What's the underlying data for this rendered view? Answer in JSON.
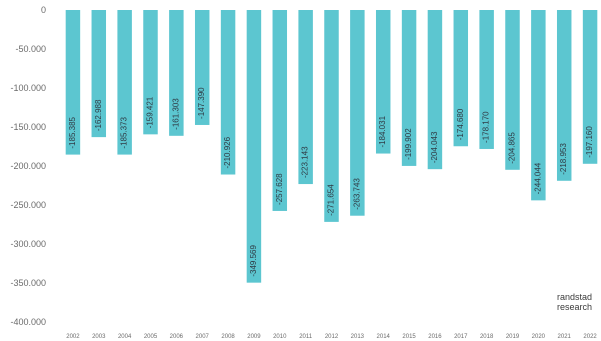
{
  "brand": {
    "line1": "randstad",
    "line2": "research"
  },
  "colors": {
    "bar": "#5cc6d0",
    "axis_text": "#6b6b6b",
    "label_text": "#2f3a44"
  },
  "chart_data": {
    "type": "bar",
    "title": "",
    "xlabel": "",
    "ylabel": "",
    "grid": false,
    "legend": "none",
    "ylim": [
      -400000,
      0
    ],
    "y_ticks": [
      "0",
      "-50.000",
      "-100.000",
      "-150.000",
      "-200.000",
      "-250.000",
      "-300.000",
      "-350.000",
      "-400.000"
    ],
    "categories": [
      "2002",
      "2003",
      "2004",
      "2005",
      "2006",
      "2007",
      "2008",
      "2009",
      "2010",
      "2011",
      "2012",
      "2013",
      "2014",
      "2015",
      "2016",
      "2017",
      "2018",
      "2019",
      "2020",
      "2021",
      "2022"
    ],
    "values": [
      -185385,
      -162988,
      -185373,
      -159421,
      -161303,
      -147390,
      -210926,
      -349569,
      -257628,
      -223143,
      -271654,
      -263743,
      -184031,
      -199902,
      -204043,
      -174680,
      -178170,
      -204865,
      -244044,
      -218953,
      -197160
    ],
    "data_labels": [
      "-185.385",
      "-162.988",
      "-185.373",
      "-159.421",
      "-161.303",
      "-147.390",
      "-210.926",
      "-349.569",
      "-257.628",
      "-223.143",
      "-271.654",
      "-263.743",
      "-184.031",
      "-199.902",
      "-204.043",
      "-174.680",
      "-178.170",
      "-204.865",
      "-244.044",
      "-218.953",
      "-197.160"
    ]
  }
}
